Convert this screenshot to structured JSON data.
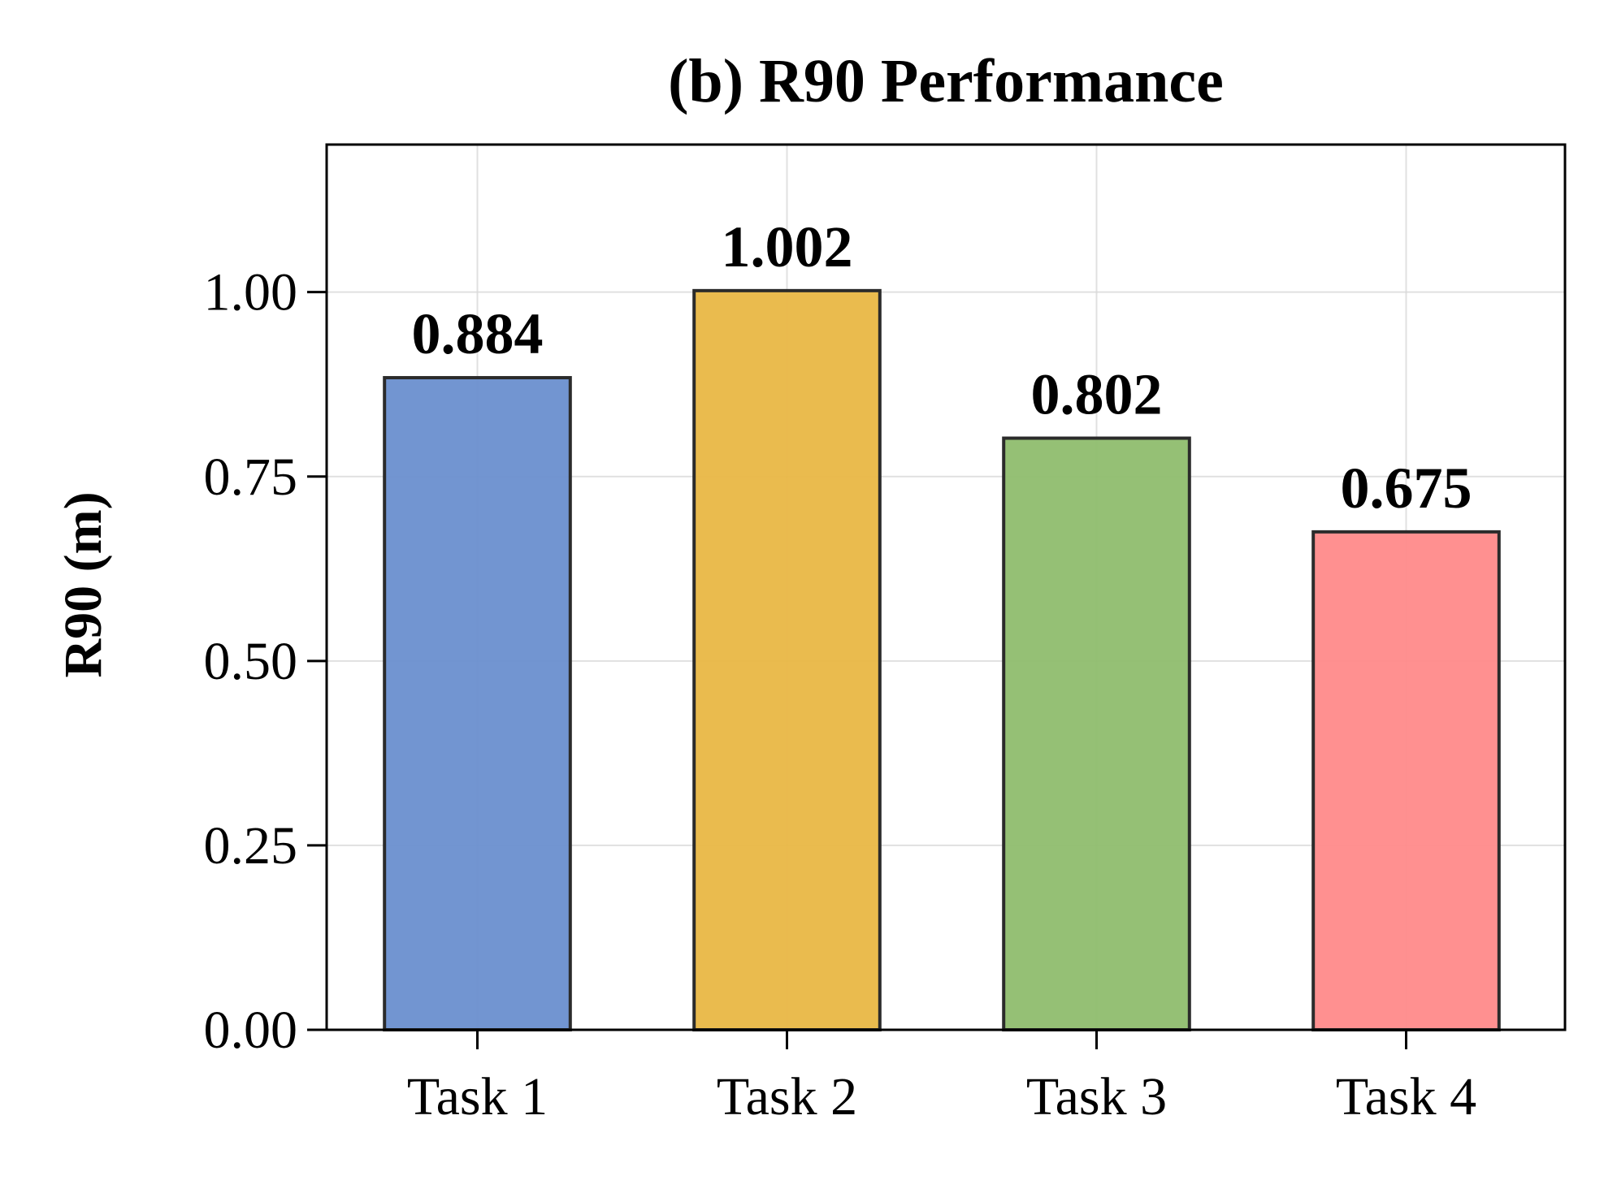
{
  "chart_data": {
    "type": "bar",
    "title": "(b) R90 Performance",
    "xlabel": "",
    "ylabel": "R90 (m)",
    "categories": [
      "Task 1",
      "Task 2",
      "Task 3",
      "Task 4"
    ],
    "values": [
      0.884,
      1.002,
      0.802,
      0.675
    ],
    "data_labels": [
      "0.884",
      "1.002",
      "0.802",
      "0.675"
    ],
    "colors": [
      "#6a8fcf",
      "#e9b745",
      "#8fbd6e",
      "#ff8a8a"
    ],
    "ylim": [
      0,
      1.2
    ],
    "yticks": [
      0,
      0.25,
      0.5,
      0.75,
      1.0
    ],
    "ytick_labels": [
      "0.00",
      "0.25",
      "0.50",
      "0.75",
      "1.00"
    ],
    "grid": true,
    "legend": "none"
  }
}
